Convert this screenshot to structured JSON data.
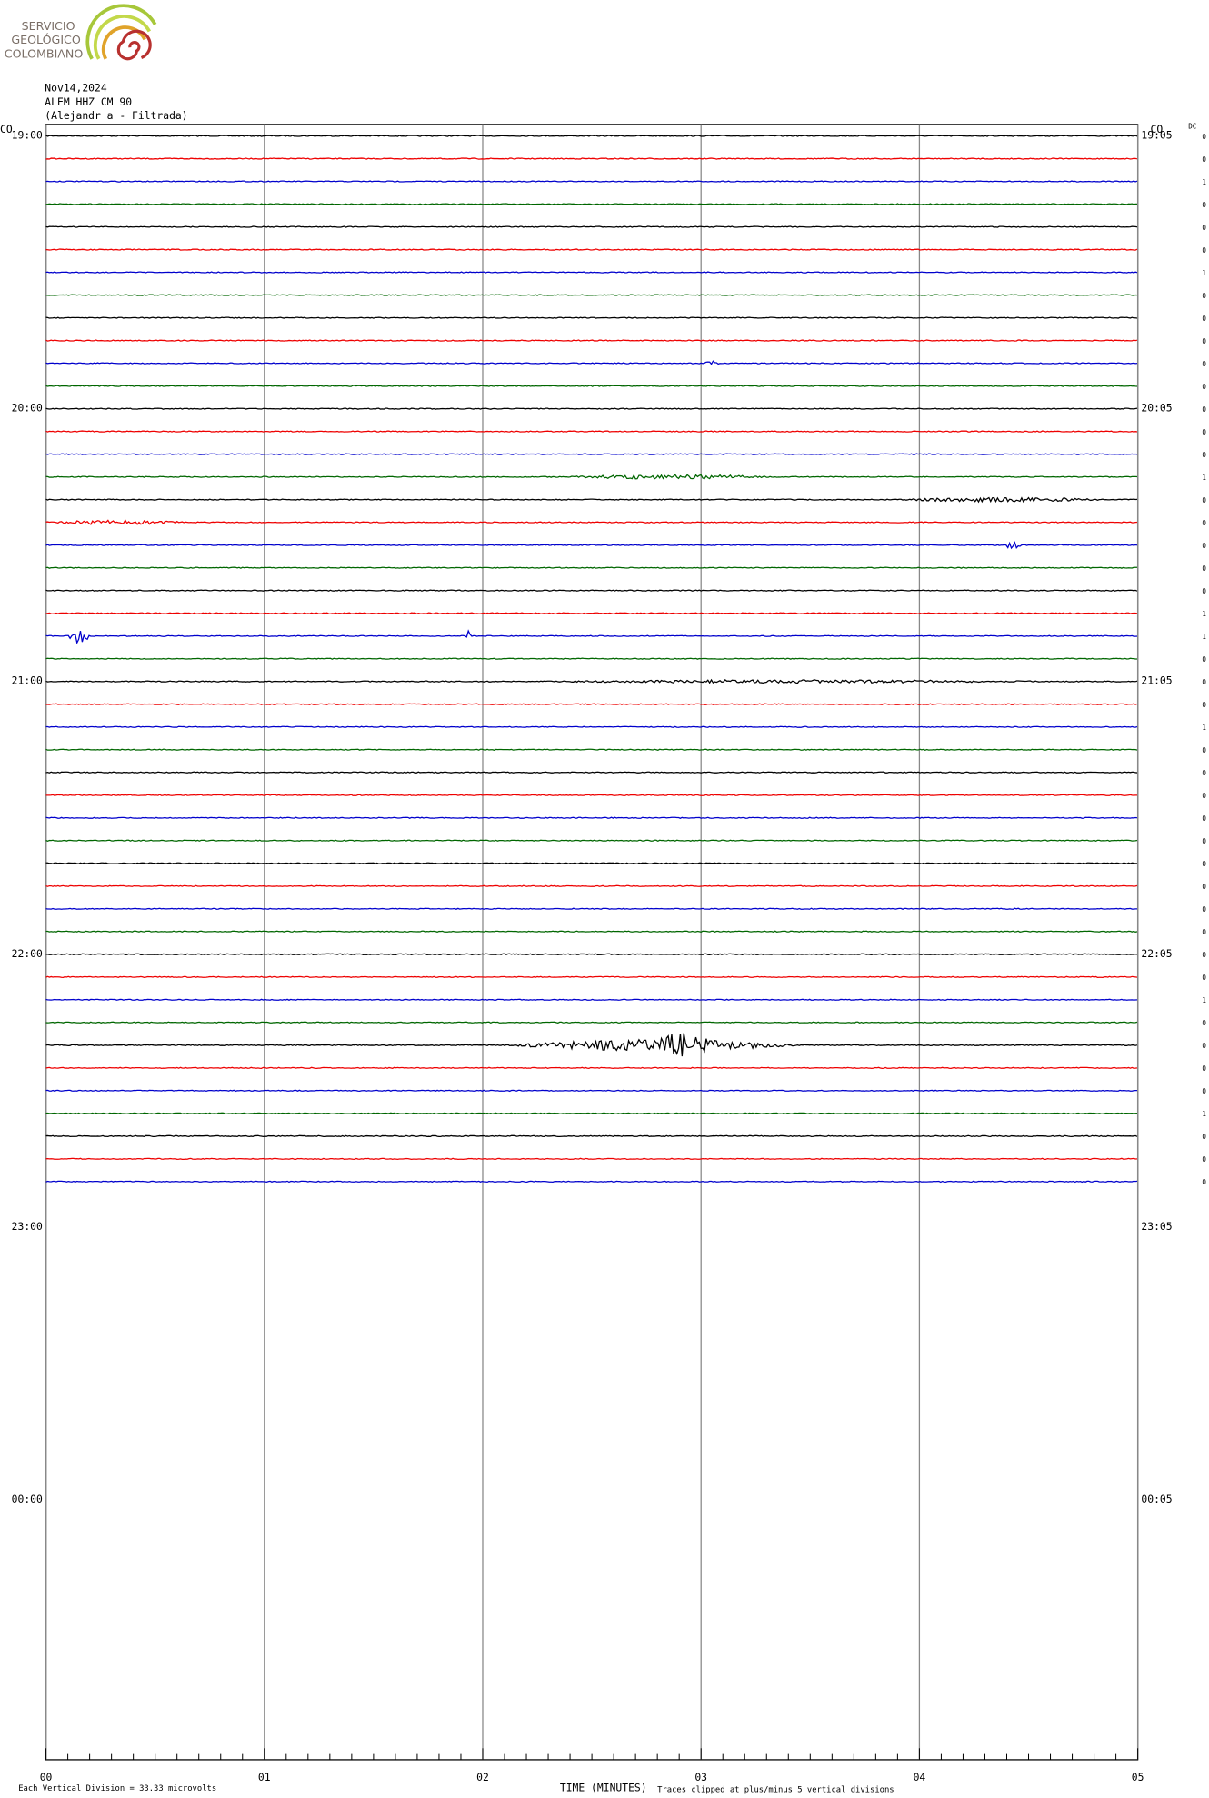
{
  "header": {
    "logo": [
      "SERVICIO",
      "GEOLÓGICO",
      "COLOMBIANO"
    ],
    "date": "Nov14,2024",
    "station": "ALEM HHZ CM 90",
    "filter": "(Alejandr  a - Filtrada)"
  },
  "labels": {
    "left_corner": "CO",
    "right_corner": "CO",
    "dc": "DC"
  },
  "left_times": [
    "19:00",
    "20:00",
    "21:00",
    "22:00",
    "23:00",
    "00:00"
  ],
  "right_times": [
    "19:05",
    "20:05",
    "21:05",
    "22:05",
    "23:05",
    "00:05"
  ],
  "minutes": [
    "00",
    "01",
    "02",
    "03",
    "04",
    "05"
  ],
  "trace_flags": [
    "0",
    "0",
    "1",
    "0",
    "0",
    "0",
    "1",
    "0",
    "0",
    "0",
    "0",
    "0",
    "0",
    "0",
    "0",
    "1",
    "0",
    "0",
    "0",
    "0",
    "0",
    "1",
    "1",
    "0",
    "0",
    "0",
    "1",
    "0",
    "0",
    "0",
    "0",
    "0",
    "0",
    "0",
    "0",
    "0",
    "0",
    "0",
    "1",
    "0",
    "0",
    "0",
    "0",
    "1",
    "0",
    "0",
    "0"
  ],
  "footer": {
    "scale": "Each Vertical Division =   33.33 microvolts",
    "axis_title": "TIME (MINUTES)",
    "clip_note": "Traces clipped at plus/minus 5 vertical divisions"
  }
}
